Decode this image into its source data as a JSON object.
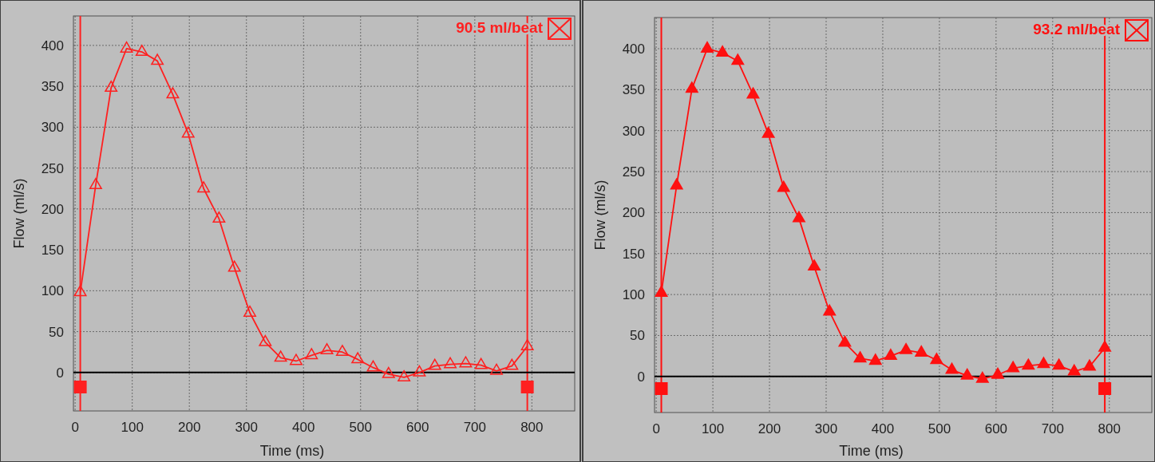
{
  "chart_data": [
    {
      "type": "line",
      "xlabel": "Time (ms)",
      "ylabel": "Flow (ml/s)",
      "xlim": [
        -3,
        875
      ],
      "ylim": [
        -47,
        436
      ],
      "xticks": [
        0,
        100,
        200,
        300,
        400,
        500,
        600,
        700,
        800
      ],
      "yticks": [
        0,
        50,
        100,
        150,
        200,
        250,
        300,
        350,
        400
      ],
      "grid": true,
      "marker": "triangle",
      "line_style": "solid",
      "series": [
        {
          "color": "#ff2020",
          "x": [
            9,
            36,
            63,
            90,
            117,
            144,
            171,
            198,
            225,
            252,
            279,
            306,
            333,
            360,
            387,
            414,
            441,
            468,
            495,
            522,
            549,
            576,
            603,
            630,
            657,
            684,
            711,
            738,
            765,
            792
          ],
          "values": [
            98,
            229,
            348,
            396,
            392,
            381,
            340,
            292,
            225,
            188,
            128,
            73,
            37,
            18,
            14,
            21,
            27,
            25,
            16,
            6,
            -2,
            -6,
            0,
            8,
            10,
            11,
            9,
            2,
            8,
            32
          ]
        }
      ],
      "ref_lines": [
        {
          "axis": "x",
          "value": 9,
          "color": "#ff2020"
        },
        {
          "axis": "x",
          "value": 792,
          "color": "#ff2020"
        },
        {
          "axis": "y",
          "value": 0,
          "color": "#000000"
        }
      ],
      "annotations": [
        "90.5 ml/beat"
      ]
    },
    {
      "type": "line",
      "xlabel": "Time (ms)",
      "ylabel": "Flow (ml/s)",
      "xlim": [
        -3,
        875
      ],
      "ylim": [
        -44,
        438
      ],
      "xticks": [
        0,
        100,
        200,
        300,
        400,
        500,
        600,
        700,
        800
      ],
      "yticks": [
        0,
        50,
        100,
        150,
        200,
        250,
        300,
        350,
        400
      ],
      "grid": true,
      "marker": "triangle",
      "line_style": "solid",
      "series": [
        {
          "color": "#ff1010",
          "x": [
            9,
            36,
            63,
            90,
            117,
            144,
            171,
            198,
            225,
            252,
            279,
            306,
            333,
            360,
            387,
            414,
            441,
            468,
            495,
            522,
            549,
            576,
            603,
            630,
            657,
            684,
            711,
            738,
            765,
            792
          ],
          "values": [
            102,
            233,
            351,
            400,
            395,
            385,
            344,
            296,
            230,
            193,
            134,
            79,
            41,
            22,
            19,
            25,
            32,
            29,
            20,
            8,
            1,
            -3,
            2,
            10,
            13,
            15,
            13,
            6,
            12,
            35
          ]
        }
      ],
      "ref_lines": [
        {
          "axis": "x",
          "value": 9,
          "color": "#ff1010"
        },
        {
          "axis": "x",
          "value": 792,
          "color": "#ff1010"
        },
        {
          "axis": "y",
          "value": 0,
          "color": "#000000"
        }
      ],
      "annotations": [
        "93.2 ml/beat"
      ]
    }
  ]
}
